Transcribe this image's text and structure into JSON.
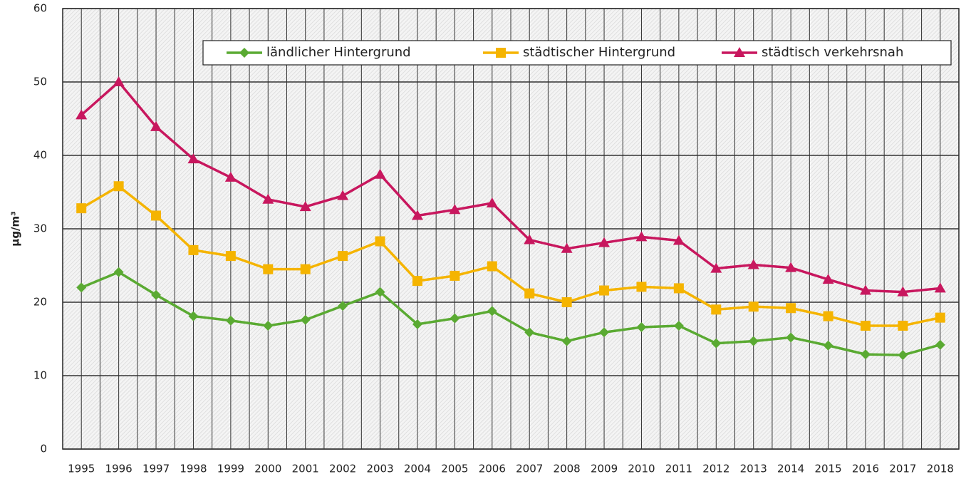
{
  "chart_data": {
    "type": "line",
    "y_label": "µg/m³",
    "categories": [
      "1995",
      "1996",
      "1997",
      "1998",
      "1999",
      "2000",
      "2001",
      "2002",
      "2003",
      "2004",
      "2005",
      "2006",
      "2007",
      "2008",
      "2009",
      "2010",
      "2011",
      "2012",
      "2013",
      "2014",
      "2015",
      "2016",
      "2017",
      "2018"
    ],
    "series": [
      {
        "name": "ländlicher Hintergrund",
        "color": "#5aaa32",
        "marker": "diamond",
        "values": [
          22.0,
          24.1,
          21.0,
          18.1,
          17.5,
          16.8,
          17.6,
          19.5,
          21.4,
          17.0,
          17.8,
          18.8,
          15.9,
          14.7,
          15.9,
          16.6,
          16.8,
          14.4,
          14.7,
          15.2,
          14.1,
          12.9,
          12.8,
          14.2
        ]
      },
      {
        "name": "städtischer Hintergrund",
        "color": "#f5b400",
        "marker": "square",
        "values": [
          32.8,
          35.8,
          31.8,
          27.1,
          26.3,
          24.5,
          24.5,
          26.3,
          28.3,
          22.9,
          23.6,
          24.9,
          21.2,
          20.0,
          21.6,
          22.1,
          21.9,
          19.0,
          19.4,
          19.2,
          18.1,
          16.8,
          16.8,
          17.9
        ]
      },
      {
        "name": "städtisch verkehrsnah",
        "color": "#c8175e",
        "marker": "triangle",
        "values": [
          45.5,
          50.0,
          43.9,
          39.5,
          37.0,
          34.0,
          33.0,
          34.5,
          37.4,
          31.8,
          32.6,
          33.5,
          28.5,
          27.3,
          28.1,
          28.9,
          28.4,
          24.6,
          25.1,
          24.7,
          23.1,
          21.6,
          21.4,
          21.9
        ]
      }
    ],
    "ylim": [
      0,
      60
    ],
    "yticks": [
      0,
      10,
      20,
      30,
      40,
      50,
      60
    ],
    "grid": true,
    "legend": "top"
  }
}
